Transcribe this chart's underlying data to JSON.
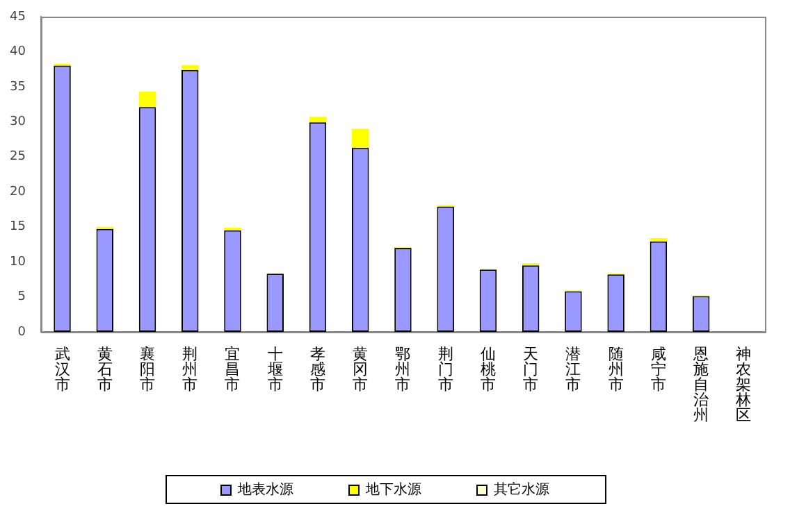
{
  "chart_data": {
    "type": "bar",
    "stacked": true,
    "categories": [
      "武汉市",
      "黄石市",
      "襄阳市",
      "荆州市",
      "宜昌市",
      "十堰市",
      "孝感市",
      "黄冈市",
      "鄂州市",
      "荆门市",
      "仙桃市",
      "天门市",
      "潜江市",
      "随州市",
      "咸宁市",
      "恩施自治州",
      "神农架林区"
    ],
    "series": [
      {
        "name": "地表水源",
        "color": "#9999ff",
        "values": [
          38,
          14.7,
          32.1,
          37.4,
          14.5,
          8.3,
          29.9,
          26.3,
          12,
          17.9,
          8.9,
          9.5,
          5.8,
          8.2,
          12.9,
          5.1,
          0
        ]
      },
      {
        "name": "地下水源",
        "color": "#ffff00",
        "values": [
          0.3,
          0.3,
          2.2,
          0.7,
          0.4,
          0.1,
          0.8,
          2.7,
          0.1,
          0.2,
          0.1,
          0.3,
          0.1,
          0.1,
          0.5,
          0.1,
          0
        ]
      },
      {
        "name": "其它水源",
        "color": "#ffffcc",
        "values": [
          0,
          0,
          0,
          0,
          0,
          0,
          0,
          0,
          0,
          0,
          0,
          0,
          0,
          0,
          0,
          0,
          0
        ]
      }
    ],
    "ylim": [
      0,
      45
    ],
    "yticks": [
      0,
      5,
      10,
      15,
      20,
      25,
      30,
      35,
      40,
      45
    ],
    "grid": false,
    "legend": "bottom"
  }
}
